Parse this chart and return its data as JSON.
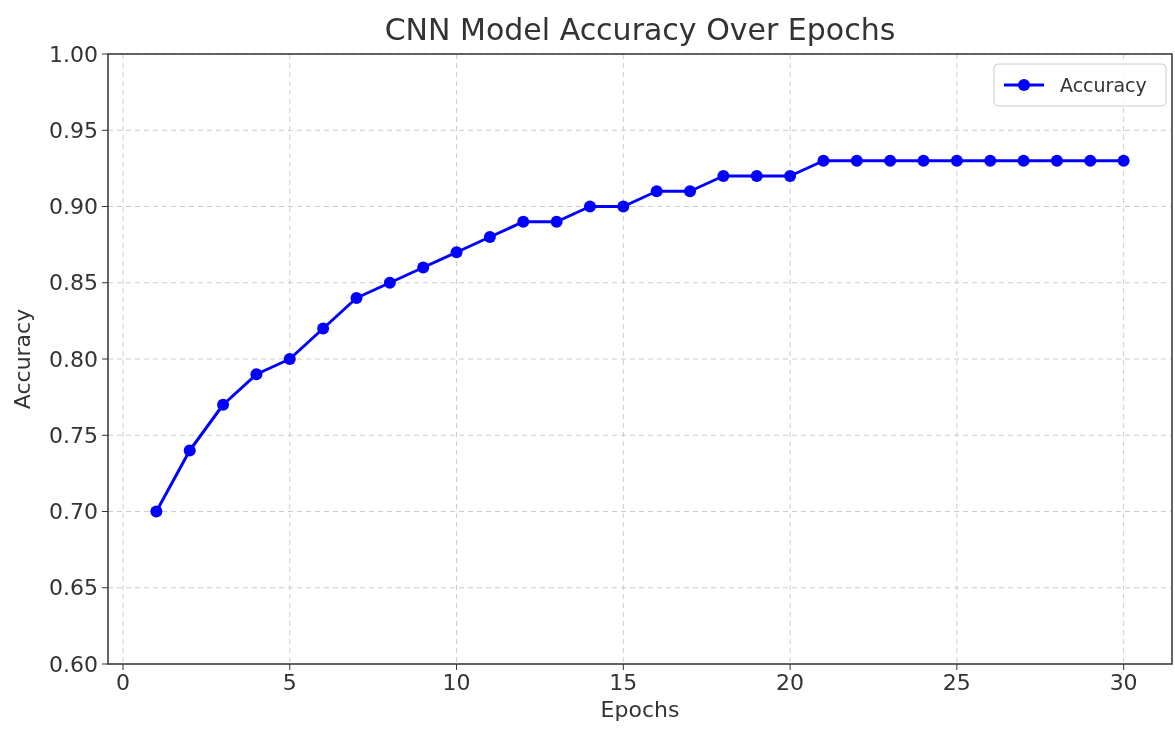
{
  "chart_data": {
    "type": "line",
    "title": "CNN Model Accuracy Over Epochs",
    "xlabel": "Epochs",
    "ylabel": "Accuracy",
    "x": [
      1,
      2,
      3,
      4,
      5,
      6,
      7,
      8,
      9,
      10,
      11,
      12,
      13,
      14,
      15,
      16,
      17,
      18,
      19,
      20,
      21,
      22,
      23,
      24,
      25,
      26,
      27,
      28,
      29,
      30
    ],
    "series": [
      {
        "name": "Accuracy",
        "color": "#0000ff",
        "values": [
          0.7,
          0.74,
          0.77,
          0.79,
          0.8,
          0.82,
          0.84,
          0.85,
          0.86,
          0.87,
          0.88,
          0.89,
          0.89,
          0.9,
          0.9,
          0.91,
          0.91,
          0.92,
          0.92,
          0.92,
          0.93,
          0.93,
          0.93,
          0.93,
          0.93,
          0.93,
          0.93,
          0.93,
          0.93,
          0.93
        ]
      }
    ],
    "xlim": [
      -0.45,
      31.45
    ],
    "xticks": [
      0,
      5,
      10,
      15,
      20,
      25,
      30
    ],
    "ylim": [
      0.6,
      1.0
    ],
    "yticks": [
      {
        "value": 0.6,
        "label": "0.60"
      },
      {
        "value": 0.65,
        "label": "0.65"
      },
      {
        "value": 0.7,
        "label": "0.70"
      },
      {
        "value": 0.75,
        "label": "0.75"
      },
      {
        "value": 0.8,
        "label": "0.80"
      },
      {
        "value": 0.85,
        "label": "0.85"
      },
      {
        "value": 0.9,
        "label": "0.90"
      },
      {
        "value": 0.95,
        "label": "0.95"
      },
      {
        "value": 1.0,
        "label": "1.00"
      }
    ],
    "grid": true,
    "legend": "top right",
    "marker": "circle",
    "line_style": "solid"
  }
}
